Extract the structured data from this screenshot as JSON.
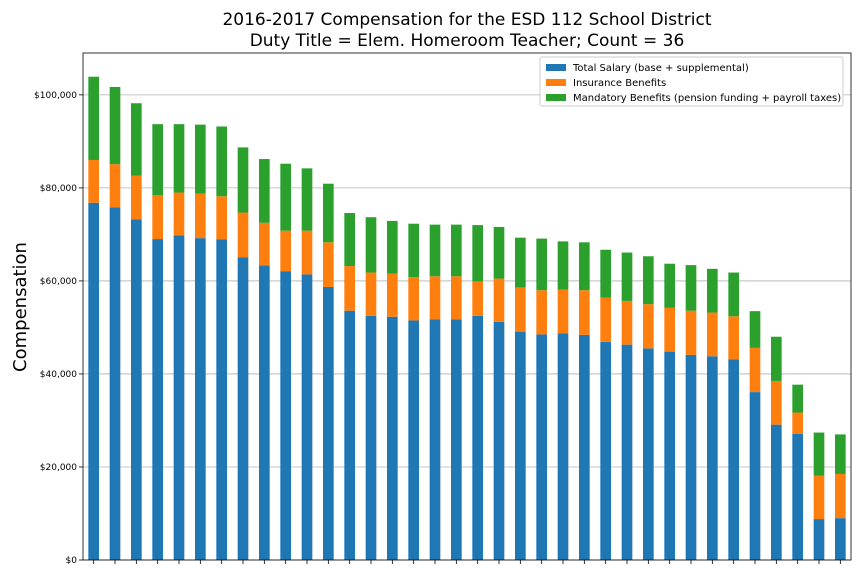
{
  "chart_data": {
    "type": "bar",
    "stacked": true,
    "title": "2016-2017 Compensation for the ESD 112 School District",
    "subtitle": "Duty Title = Elem. Homeroom Teacher; Count = 36",
    "xlabel": "",
    "ylabel": "Compensation",
    "ylim": [
      0,
      109000
    ],
    "yticks": [
      0,
      20000,
      40000,
      60000,
      80000,
      100000
    ],
    "ytick_labels": [
      "$0",
      "$20,000",
      "$40,000",
      "$60,000",
      "$80,000",
      "$100,000"
    ],
    "grid": "horizontal",
    "legend_position": "top-right",
    "series": [
      {
        "name": "Total Salary (base + supplemental)",
        "color": "#1f77b4",
        "values": [
          76800,
          75800,
          73200,
          69000,
          69800,
          69200,
          68900,
          65100,
          63300,
          62100,
          61400,
          58700,
          53600,
          52500,
          52300,
          51500,
          51700,
          51700,
          52500,
          51200,
          49100,
          48500,
          48700,
          48400,
          46900,
          46300,
          45500,
          44800,
          44100,
          43800,
          43100,
          36100,
          29100,
          27100,
          8800,
          9000
        ]
      },
      {
        "name": "Insurance Benefits",
        "color": "#ff7f0e",
        "values": [
          9200,
          9300,
          9400,
          9400,
          9200,
          9600,
          9300,
          9600,
          9200,
          8700,
          9400,
          9600,
          9600,
          9300,
          9300,
          9300,
          9300,
          9300,
          7400,
          9300,
          9500,
          9500,
          9400,
          9600,
          9500,
          9400,
          9500,
          9400,
          9500,
          9400,
          9300,
          9500,
          9400,
          4600,
          9300,
          9500
        ]
      },
      {
        "name": "Mandatory Benefits (pension funding + payroll taxes)",
        "color": "#2ca02c",
        "values": [
          17900,
          16600,
          15600,
          15300,
          14700,
          14800,
          15000,
          14000,
          13700,
          14400,
          13400,
          12600,
          11400,
          11900,
          11300,
          11500,
          11100,
          11100,
          12100,
          11100,
          10700,
          11100,
          10400,
          10300,
          10300,
          10400,
          10300,
          9500,
          9800,
          9400,
          9400,
          7900,
          9500,
          6000,
          9300,
          8500
        ]
      }
    ]
  }
}
